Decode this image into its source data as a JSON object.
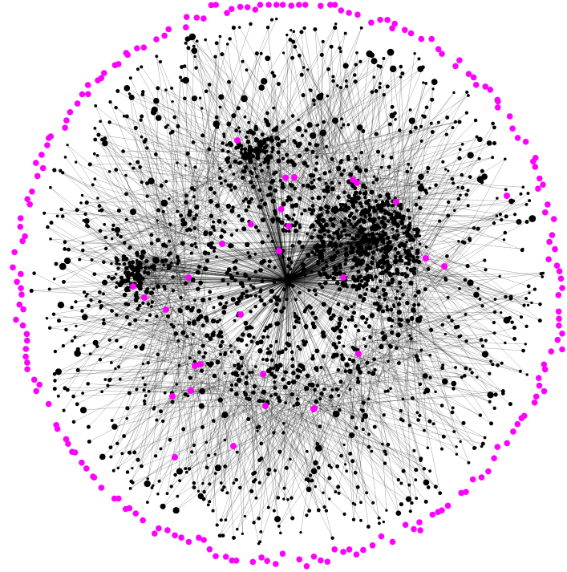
{
  "graph": {
    "node_color": "#000000",
    "edge_color": "#000000",
    "highlight_color": "#ff00ff",
    "background": "#ffffff",
    "outer_ring_highlight_count": 230,
    "inner_highlight_count": 31,
    "peripheral_node_count": 900,
    "core_node_count": 1400
  }
}
